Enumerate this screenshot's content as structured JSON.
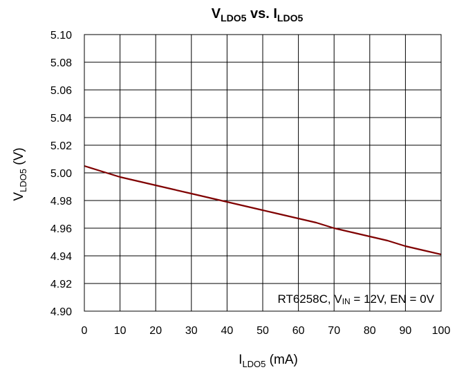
{
  "chart_data": {
    "type": "line",
    "title": {
      "main": "V",
      "main_sub": "LDO5",
      "mid": " vs. I",
      "end_sub": "LDO5"
    },
    "xlabel": {
      "pre": "I",
      "sub": "LDO5",
      "post": " (mA)"
    },
    "ylabel": {
      "pre": "V",
      "sub": "LDO5",
      "post": " (V)"
    },
    "xlim": [
      0,
      100
    ],
    "ylim": [
      4.9,
      5.1
    ],
    "x_ticks": [
      "0",
      "10",
      "20",
      "30",
      "40",
      "50",
      "60",
      "70",
      "80",
      "90",
      "100"
    ],
    "y_ticks": [
      "4.90",
      "4.92",
      "4.94",
      "4.96",
      "4.98",
      "5.00",
      "5.02",
      "5.04",
      "5.06",
      "5.08",
      "5.10"
    ],
    "grid": true,
    "annotation": {
      "pre": "RT6258C, V",
      "sub": "IN",
      "post": " = 12V, EN = 0V"
    },
    "series": [
      {
        "color": "#7f0000",
        "x": [
          0,
          5,
          10,
          15,
          20,
          25,
          30,
          35,
          40,
          45,
          50,
          55,
          60,
          65,
          70,
          75,
          80,
          85,
          90,
          95,
          100
        ],
        "y": [
          5.005,
          5.001,
          4.997,
          4.994,
          4.991,
          4.988,
          4.985,
          4.982,
          4.979,
          4.976,
          4.973,
          4.97,
          4.967,
          4.964,
          4.96,
          4.957,
          4.954,
          4.951,
          4.947,
          4.944,
          4.941
        ]
      }
    ]
  }
}
